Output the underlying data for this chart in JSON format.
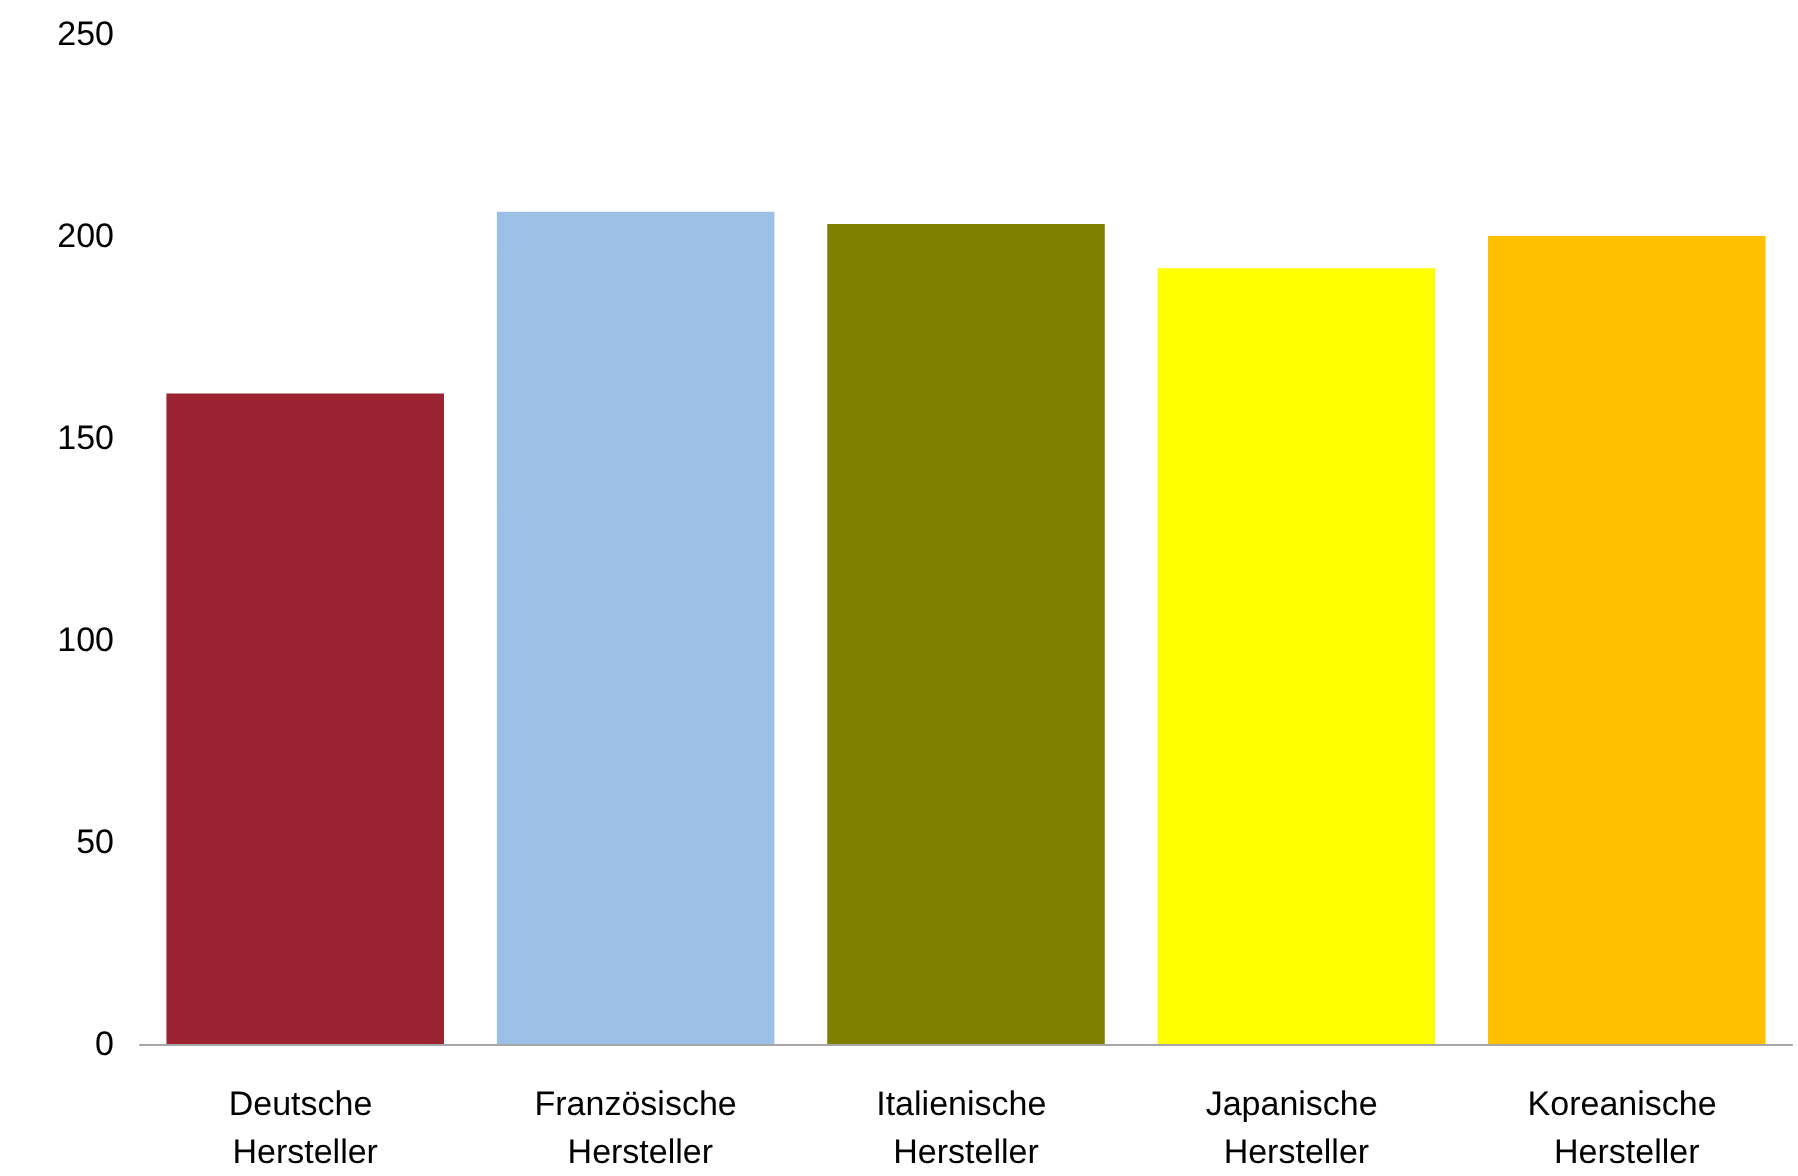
{
  "chart_data": {
    "type": "bar",
    "categories": [
      "Deutsche Hersteller",
      "Französische Hersteller",
      "Italienische Hersteller",
      "Japanische Hersteller",
      "Koreanische Hersteller"
    ],
    "values": [
      161,
      206,
      203,
      192,
      200
    ],
    "colors": [
      "#9b2230",
      "#9bbfe5",
      "#7f7f00",
      "#ffff00",
      "#ffc000"
    ],
    "ylim": [
      0,
      250
    ],
    "yticks": [
      0,
      50,
      100,
      150,
      200,
      250
    ]
  }
}
